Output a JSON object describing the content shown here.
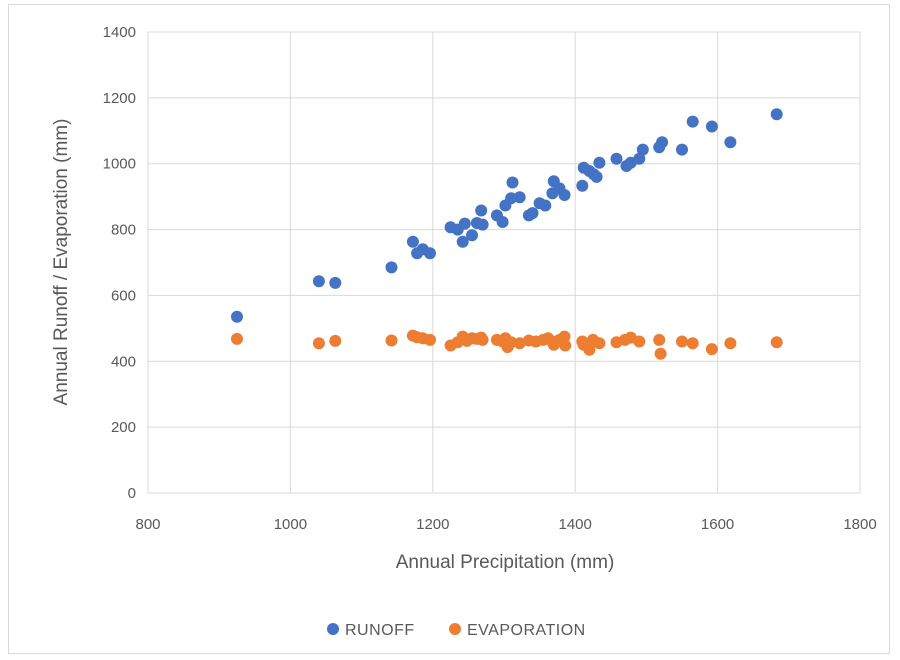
{
  "chart_data": {
    "type": "scatter",
    "title": "",
    "xlabel": "Annual Precipitation (mm)",
    "ylabel": "Annual Runoff / Evaporation (mm)",
    "xlim": [
      800,
      1800
    ],
    "ylim": [
      0,
      1400
    ],
    "xticks": [
      800,
      1000,
      1200,
      1400,
      1600,
      1800
    ],
    "yticks": [
      0,
      200,
      400,
      600,
      800,
      1000,
      1200,
      1400
    ],
    "xtick_labels": [
      "800",
      "1000",
      "1200",
      "1400",
      "1600",
      "1800"
    ],
    "ytick_labels": [
      "0",
      "200",
      "400",
      "600",
      "800",
      "1000",
      "1200",
      "1400"
    ],
    "grid": true,
    "legend_position": "bottom",
    "series": [
      {
        "name": "RUNOFF",
        "color": "#4472c4",
        "points": [
          [
            925,
            535
          ],
          [
            1040,
            643
          ],
          [
            1063,
            638
          ],
          [
            1142,
            685
          ],
          [
            1172,
            763
          ],
          [
            1178,
            728
          ],
          [
            1186,
            740
          ],
          [
            1196,
            728
          ],
          [
            1225,
            807
          ],
          [
            1235,
            800
          ],
          [
            1242,
            763
          ],
          [
            1245,
            818
          ],
          [
            1255,
            783
          ],
          [
            1262,
            820
          ],
          [
            1268,
            858
          ],
          [
            1270,
            815
          ],
          [
            1290,
            843
          ],
          [
            1298,
            823
          ],
          [
            1302,
            873
          ],
          [
            1310,
            895
          ],
          [
            1312,
            943
          ],
          [
            1322,
            898
          ],
          [
            1335,
            843
          ],
          [
            1340,
            850
          ],
          [
            1350,
            880
          ],
          [
            1358,
            873
          ],
          [
            1368,
            910
          ],
          [
            1370,
            947
          ],
          [
            1378,
            925
          ],
          [
            1385,
            905
          ],
          [
            1410,
            933
          ],
          [
            1412,
            988
          ],
          [
            1420,
            978
          ],
          [
            1426,
            968
          ],
          [
            1430,
            960
          ],
          [
            1434,
            1003
          ],
          [
            1458,
            1015
          ],
          [
            1472,
            993
          ],
          [
            1478,
            1003
          ],
          [
            1490,
            1015
          ],
          [
            1495,
            1043
          ],
          [
            1518,
            1050
          ],
          [
            1522,
            1065
          ],
          [
            1550,
            1043
          ],
          [
            1565,
            1128
          ],
          [
            1592,
            1113
          ],
          [
            1618,
            1065
          ],
          [
            1683,
            1150
          ]
        ]
      },
      {
        "name": "EVAPORATION",
        "color": "#ed7d31",
        "points": [
          [
            925,
            468
          ],
          [
            1040,
            455
          ],
          [
            1063,
            462
          ],
          [
            1142,
            463
          ],
          [
            1172,
            478
          ],
          [
            1178,
            473
          ],
          [
            1186,
            470
          ],
          [
            1196,
            465
          ],
          [
            1225,
            448
          ],
          [
            1235,
            458
          ],
          [
            1242,
            475
          ],
          [
            1248,
            462
          ],
          [
            1255,
            470
          ],
          [
            1262,
            468
          ],
          [
            1268,
            472
          ],
          [
            1270,
            465
          ],
          [
            1290,
            465
          ],
          [
            1298,
            460
          ],
          [
            1302,
            470
          ],
          [
            1305,
            443
          ],
          [
            1310,
            458
          ],
          [
            1322,
            455
          ],
          [
            1335,
            463
          ],
          [
            1345,
            460
          ],
          [
            1355,
            465
          ],
          [
            1362,
            470
          ],
          [
            1368,
            460
          ],
          [
            1370,
            450
          ],
          [
            1378,
            465
          ],
          [
            1385,
            475
          ],
          [
            1386,
            448
          ],
          [
            1410,
            460
          ],
          [
            1412,
            450
          ],
          [
            1420,
            435
          ],
          [
            1425,
            465
          ],
          [
            1434,
            455
          ],
          [
            1458,
            458
          ],
          [
            1470,
            465
          ],
          [
            1478,
            472
          ],
          [
            1490,
            460
          ],
          [
            1518,
            465
          ],
          [
            1520,
            423
          ],
          [
            1550,
            460
          ],
          [
            1565,
            455
          ],
          [
            1592,
            437
          ],
          [
            1618,
            455
          ],
          [
            1683,
            458
          ]
        ]
      }
    ]
  }
}
